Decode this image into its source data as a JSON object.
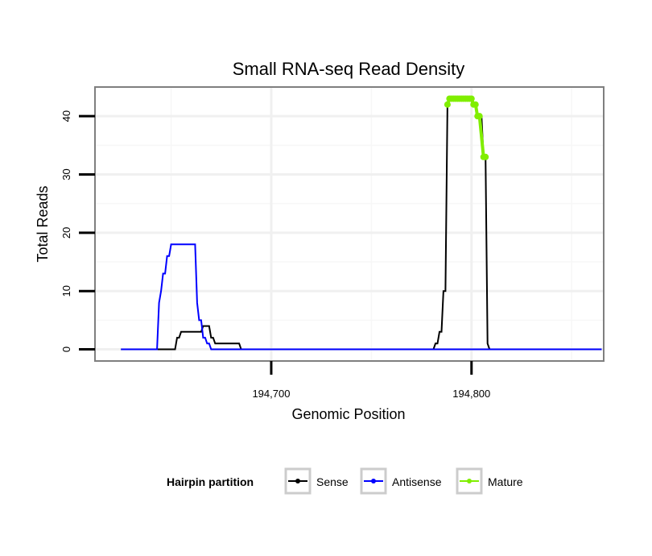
{
  "chart_data": {
    "type": "line",
    "title": "Small RNA-seq Read Density",
    "xlabel": "Genomic Position",
    "ylabel": "Total Reads",
    "xlim": [
      194612,
      194866
    ],
    "ylim": [
      -2,
      45
    ],
    "x_ticks": [
      {
        "value": 194700,
        "label": "194,700"
      },
      {
        "value": 194800,
        "label": "194,800"
      }
    ],
    "y_ticks": [
      {
        "value": 0,
        "label": "0"
      },
      {
        "value": 10,
        "label": "10"
      },
      {
        "value": 20,
        "label": "20"
      },
      {
        "value": 30,
        "label": "30"
      },
      {
        "value": 40,
        "label": "40"
      }
    ],
    "grid": true,
    "legend": {
      "title": "Hairpin partition",
      "position": "bottom",
      "entries": [
        "Sense",
        "Antisense",
        "Mature"
      ]
    },
    "series": [
      {
        "name": "Sense",
        "color": "#000000",
        "points": [
          [
            194625,
            0
          ],
          [
            194652,
            0
          ],
          [
            194653,
            2
          ],
          [
            194654,
            2
          ],
          [
            194655,
            3
          ],
          [
            194665,
            3
          ],
          [
            194666,
            4
          ],
          [
            194669,
            4
          ],
          [
            194670,
            2
          ],
          [
            194671,
            2
          ],
          [
            194672,
            1
          ],
          [
            194684,
            1
          ],
          [
            194685,
            0
          ],
          [
            194781,
            0
          ],
          [
            194782,
            1
          ],
          [
            194783,
            1
          ],
          [
            194784,
            3
          ],
          [
            194785,
            3
          ],
          [
            194786,
            10
          ],
          [
            194787,
            10
          ],
          [
            194788,
            42
          ],
          [
            194789,
            43
          ],
          [
            194800,
            43
          ],
          [
            194801,
            42
          ],
          [
            194802,
            42
          ],
          [
            194803,
            40
          ],
          [
            194805,
            40
          ],
          [
            194806,
            33
          ],
          [
            194807,
            33
          ],
          [
            194808,
            1
          ],
          [
            194809,
            0
          ],
          [
            194865,
            0
          ]
        ]
      },
      {
        "name": "Antisense",
        "color": "#0000ff",
        "points": [
          [
            194625,
            0
          ],
          [
            194643,
            0
          ],
          [
            194644,
            8
          ],
          [
            194645,
            10
          ],
          [
            194646,
            13
          ],
          [
            194647,
            13
          ],
          [
            194648,
            16
          ],
          [
            194649,
            16
          ],
          [
            194650,
            18
          ],
          [
            194662,
            18
          ],
          [
            194663,
            8
          ],
          [
            194664,
            5
          ],
          [
            194665,
            5
          ],
          [
            194666,
            2
          ],
          [
            194667,
            2
          ],
          [
            194668,
            1
          ],
          [
            194669,
            1
          ],
          [
            194670,
            0
          ],
          [
            194865,
            0
          ]
        ]
      },
      {
        "name": "Mature",
        "color": "#80ee00",
        "points": [
          [
            194788,
            42
          ],
          [
            194789,
            43
          ],
          [
            194790,
            43
          ],
          [
            194791,
            43
          ],
          [
            194792,
            43
          ],
          [
            194793,
            43
          ],
          [
            194794,
            43
          ],
          [
            194795,
            43
          ],
          [
            194796,
            43
          ],
          [
            194797,
            43
          ],
          [
            194798,
            43
          ],
          [
            194799,
            43
          ],
          [
            194800,
            43
          ],
          [
            194801,
            42
          ],
          [
            194802,
            42
          ],
          [
            194803,
            40
          ],
          [
            194804,
            40
          ],
          [
            194806,
            33
          ],
          [
            194807,
            33
          ]
        ]
      }
    ]
  }
}
